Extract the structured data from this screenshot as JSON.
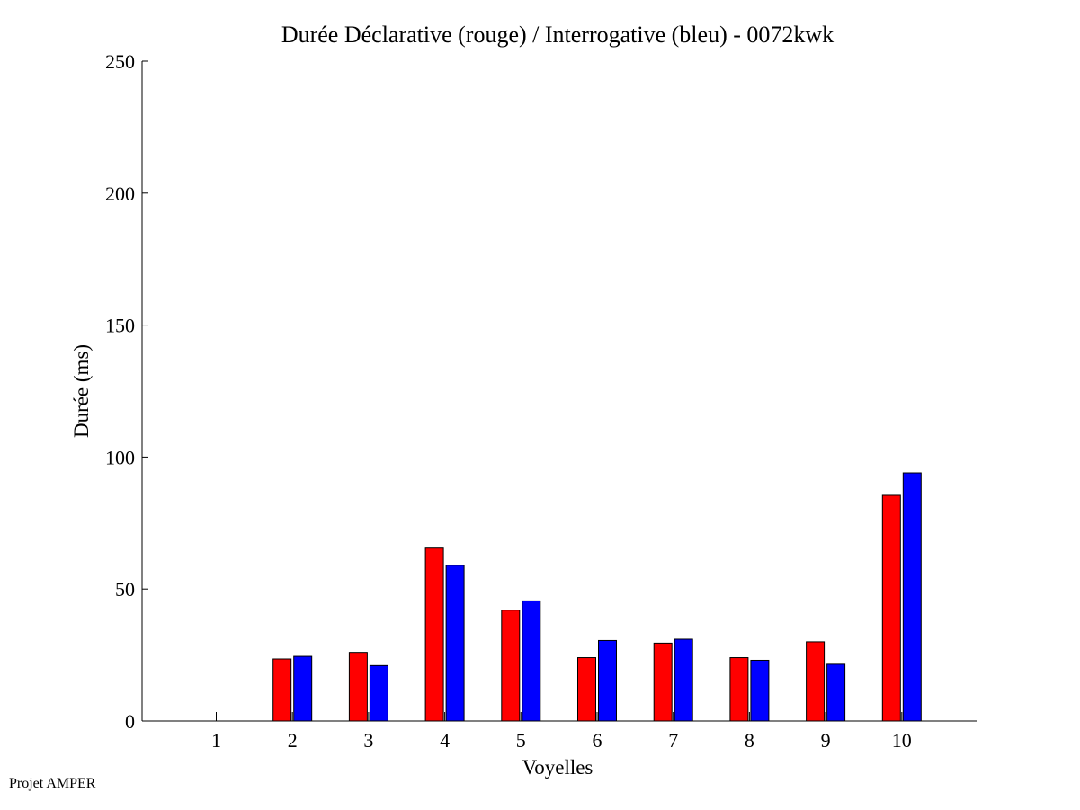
{
  "chart_data": {
    "type": "bar",
    "title": "Durée Déclarative (rouge) / Interrogative (bleu) - 0072kwk",
    "xlabel": "Voyelles",
    "ylabel": "Durée (ms)",
    "categories": [
      "1",
      "2",
      "3",
      "4",
      "5",
      "6",
      "7",
      "8",
      "9",
      "10"
    ],
    "ylim": [
      0,
      250
    ],
    "yticks": [
      0,
      50,
      100,
      150,
      200,
      250
    ],
    "grid": false,
    "series": [
      {
        "color": "#ff0000",
        "values": [
          0,
          23.5,
          26,
          65.5,
          42,
          24,
          29.5,
          24,
          30,
          85.5
        ]
      },
      {
        "color": "#0000ff",
        "values": [
          0,
          24.5,
          21,
          59,
          45.5,
          30.5,
          31,
          23,
          21.5,
          94
        ]
      }
    ]
  },
  "footer": {
    "credit": "Projet AMPER"
  }
}
